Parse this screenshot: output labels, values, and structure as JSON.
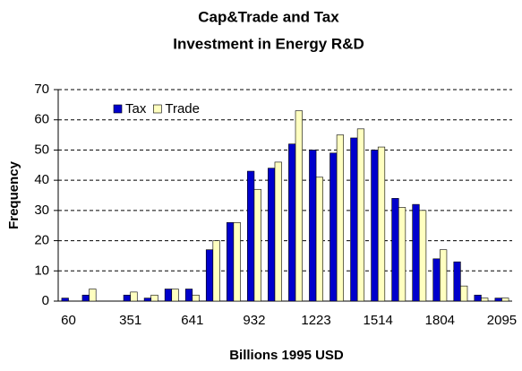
{
  "chart_data": {
    "type": "bar",
    "title": [
      "Cap&Trade and Tax",
      "Investment in Energy R&D"
    ],
    "x_label": "Billions 1995 USD",
    "y_label": "Frequency",
    "categories": [
      "60",
      null,
      null,
      "351",
      null,
      null,
      "641",
      null,
      null,
      "932",
      null,
      null,
      "1223",
      null,
      null,
      "1514",
      null,
      null,
      "1804",
      null,
      null,
      "2095"
    ],
    "series": [
      {
        "name": "Tax",
        "color": "#0000cc",
        "values": [
          1,
          2,
          0,
          2,
          1,
          4,
          4,
          17,
          26,
          43,
          44,
          52,
          50,
          49,
          54,
          50,
          34,
          32,
          14,
          13,
          2,
          1
        ]
      },
      {
        "name": "Trade",
        "color": "#ffffc0",
        "values": [
          0,
          4,
          0,
          3,
          2,
          4,
          2,
          20,
          26,
          37,
          46,
          63,
          41,
          55,
          57,
          51,
          31,
          30,
          17,
          5,
          1,
          1
        ]
      }
    ],
    "ylim": [
      0,
      70
    ],
    "yticks": [
      0,
      10,
      20,
      30,
      40,
      50,
      60,
      70
    ],
    "grid": true,
    "legend": "upper left"
  }
}
